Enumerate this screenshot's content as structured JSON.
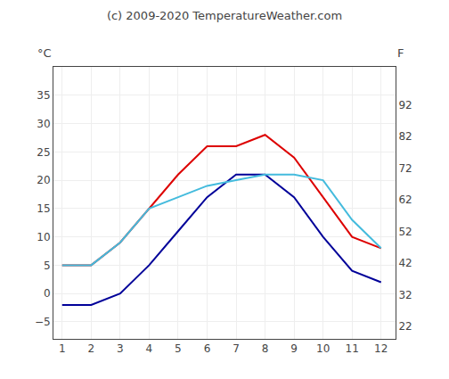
{
  "chart_data": {
    "type": "line",
    "title": "(c) 2009-2020 TemperatureWeather.com",
    "x": [
      1,
      2,
      3,
      4,
      5,
      6,
      7,
      8,
      9,
      10,
      11,
      12
    ],
    "series": [
      {
        "color": "#dd0000",
        "values": [
          5,
          5,
          9,
          15,
          21,
          26,
          26,
          28,
          24,
          17,
          10,
          8
        ]
      },
      {
        "color": "#000099",
        "values": [
          -2,
          -2,
          0,
          5,
          11,
          17,
          21,
          21,
          17,
          10,
          4,
          2
        ]
      },
      {
        "color": "#44bbdd",
        "values": [
          5,
          5,
          9,
          15,
          17,
          19,
          20,
          21,
          21,
          20,
          13,
          8
        ]
      }
    ],
    "xlim": [
      0.7,
      12.5
    ],
    "xticks": [
      1,
      2,
      3,
      4,
      5,
      6,
      7,
      8,
      9,
      10,
      11,
      12
    ],
    "ylim": [
      -8,
      40
    ],
    "yticks": [
      -5,
      0,
      5,
      10,
      15,
      20,
      25,
      30,
      35
    ],
    "y2lim": [
      18,
      104
    ],
    "y2ticks": [
      22,
      32,
      42,
      52,
      62,
      72,
      82,
      92
    ],
    "ylabel": "°C",
    "y2label": "F",
    "grid": true
  }
}
